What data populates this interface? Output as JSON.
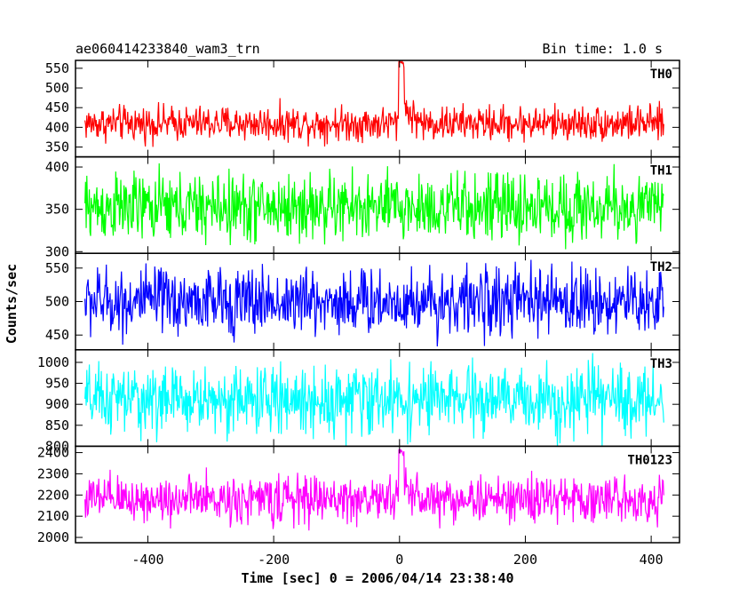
{
  "chart_data": {
    "type": "line",
    "title_left": "ae060414233840_wam3_trn",
    "title_right": "Bin time: 1.0 s",
    "xlabel": "Time [sec] 0 = 2006/04/14 23:38:40",
    "ylabel": "Counts/sec",
    "xlim": [
      -515,
      445
    ],
    "x_ticks": [
      -400,
      -200,
      0,
      200,
      400
    ],
    "x_data_range": [
      -500,
      420
    ],
    "bin_time_sec": 1.0,
    "grid": false,
    "panels": [
      {
        "label": "TH0",
        "color": "#ff0000",
        "ylim": [
          325,
          570
        ],
        "y_ticks": [
          350,
          400,
          450,
          500,
          550
        ],
        "baseline": 410,
        "noise": 22,
        "peak": {
          "x": 5,
          "value": 570
        }
      },
      {
        "label": "TH1",
        "color": "#00ff00",
        "ylim": [
          298,
          412
        ],
        "y_ticks": [
          300,
          350,
          400
        ],
        "baseline": 352,
        "noise": 20,
        "peak": null
      },
      {
        "label": "TH2",
        "color": "#0000ff",
        "ylim": [
          428,
          572
        ],
        "y_ticks": [
          450,
          500,
          550
        ],
        "baseline": 500,
        "noise": 25,
        "peak": null
      },
      {
        "label": "TH3",
        "color": "#00ffff",
        "ylim": [
          800,
          1030
        ],
        "y_ticks": [
          800,
          850,
          900,
          950,
          1000
        ],
        "baseline": 910,
        "noise": 40,
        "peak": null
      },
      {
        "label": "TH0123",
        "color": "#ff00ff",
        "ylim": [
          1975,
          2430
        ],
        "y_ticks": [
          2000,
          2100,
          2200,
          2300,
          2400
        ],
        "baseline": 2180,
        "noise": 55,
        "peak": {
          "x": 5,
          "value": 2420
        }
      }
    ]
  }
}
